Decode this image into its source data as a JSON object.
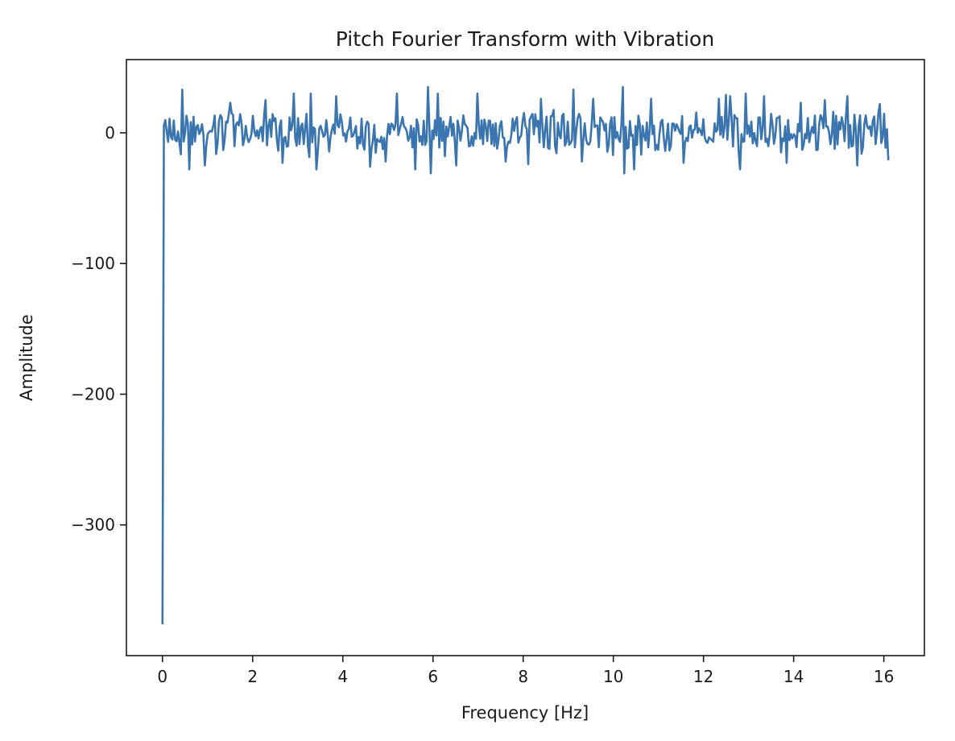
{
  "chart_data": {
    "type": "line",
    "title": "Pitch Fourier Transform with Vibration",
    "xlabel": "Frequency [Hz]",
    "ylabel": "Amplitude",
    "xlim": [
      -0.8,
      16.9
    ],
    "ylim": [
      -400,
      56
    ],
    "xticks": [
      0,
      2,
      4,
      6,
      8,
      10,
      12,
      14,
      16
    ],
    "yticks": [
      -300,
      -200,
      -100,
      0
    ],
    "grid": false,
    "line_color": "#3a75b0",
    "series": [
      {
        "x_start": 0,
        "x_end": 16.1,
        "samples": 515,
        "dc_value": -376,
        "noise_amplitude": 14,
        "peaks": [
          [
            0.45,
            33
          ],
          [
            0.6,
            -28
          ],
          [
            0.95,
            -25
          ],
          [
            1.5,
            23
          ],
          [
            2.3,
            25
          ],
          [
            2.65,
            -23
          ],
          [
            2.9,
            30
          ],
          [
            3.3,
            30
          ],
          [
            3.4,
            -28
          ],
          [
            3.85,
            28
          ],
          [
            4.6,
            -26
          ],
          [
            4.95,
            -22
          ],
          [
            5.2,
            30
          ],
          [
            5.6,
            -28
          ],
          [
            5.9,
            35
          ],
          [
            5.95,
            -31
          ],
          [
            6.1,
            30
          ],
          [
            6.5,
            -25
          ],
          [
            7.0,
            30
          ],
          [
            7.6,
            -22
          ],
          [
            8.1,
            -24
          ],
          [
            8.4,
            26
          ],
          [
            9.1,
            33
          ],
          [
            9.3,
            -22
          ],
          [
            9.55,
            26
          ],
          [
            10.2,
            35
          ],
          [
            10.25,
            -31
          ],
          [
            10.45,
            -28
          ],
          [
            10.85,
            26
          ],
          [
            11.55,
            -23
          ],
          [
            12.35,
            26
          ],
          [
            12.5,
            29
          ],
          [
            12.6,
            28
          ],
          [
            12.8,
            -28
          ],
          [
            12.95,
            30
          ],
          [
            13.35,
            28
          ],
          [
            13.85,
            -23
          ],
          [
            14.15,
            23
          ],
          [
            14.7,
            25
          ],
          [
            15.2,
            28
          ],
          [
            15.4,
            -25
          ],
          [
            15.9,
            22
          ],
          [
            16.1,
            -21
          ]
        ]
      }
    ]
  }
}
